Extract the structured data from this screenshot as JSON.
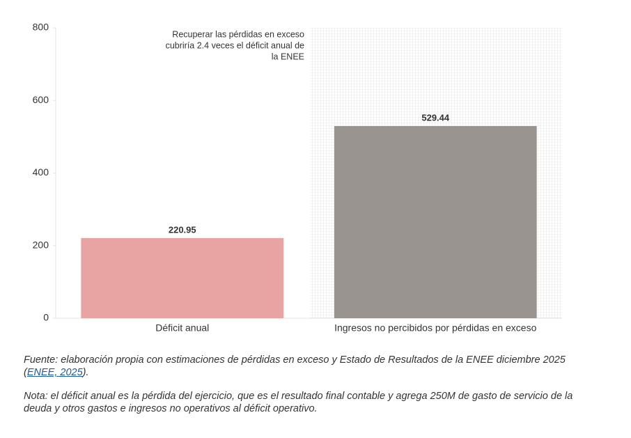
{
  "chart_data": {
    "type": "bar",
    "categories": [
      "Déficit anual",
      "Ingresos no percibidos por pérdidas en exceso"
    ],
    "values": [
      220.95,
      529.44
    ],
    "colors": [
      "#e8a3a3",
      "#9a9491"
    ],
    "ylim": [
      0,
      800
    ],
    "yticks": [
      0,
      200,
      400,
      600,
      800
    ],
    "annotation": [
      "Recuperar las pérdidas en exceso",
      "cubriría 2.4 veces el déficit anual de",
      "la ENEE"
    ]
  },
  "source": {
    "prefix": "Fuente: elaboración propia con estimaciones de pérdidas en exceso y Estado de Resultados de la ENEE diciembre 2025 (",
    "link": "ENEE, 2025",
    "suffix": ")."
  },
  "note": "Nota: el déficit anual es la pérdida del ejercicio, que es el resultado final contable y agrega 250M de gasto de servicio de la deuda y otros gastos e ingresos no operativos al déficit operativo."
}
